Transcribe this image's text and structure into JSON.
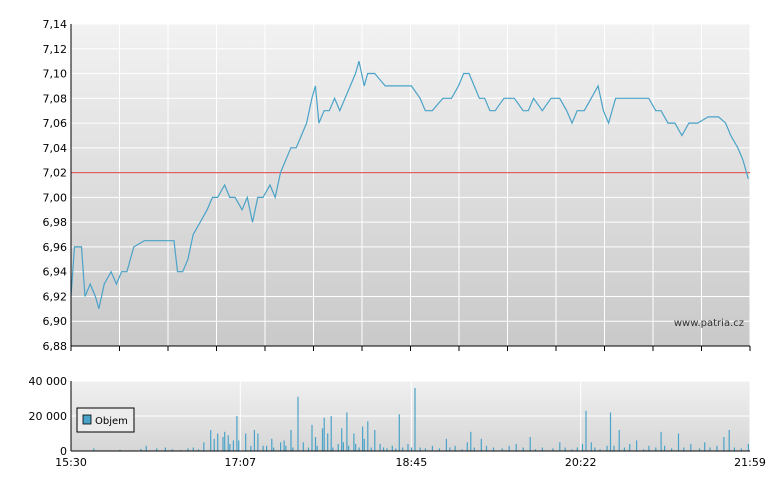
{
  "chart_data": [
    {
      "type": "line",
      "y_axis_ticks": [
        "7,14",
        "7,12",
        "7,10",
        "7,08",
        "7,06",
        "7,04",
        "7,02",
        "7,00",
        "6,98",
        "6,96",
        "6,94",
        "6,92",
        "6,90",
        "6,88"
      ],
      "y_tick_values": [
        7.14,
        7.12,
        7.1,
        7.08,
        7.06,
        7.04,
        7.02,
        7.0,
        6.98,
        6.96,
        6.94,
        6.92,
        6.9,
        6.88
      ],
      "ylim": [
        6.88,
        7.14
      ],
      "x_range_minutes": [
        930,
        1319
      ],
      "reference_line": {
        "value": 7.02,
        "color": "#e06060"
      },
      "line_color": "#4aa3c8",
      "watermark": "www.patria.cz",
      "grid": true,
      "series": [
        {
          "points": [
            [
              930,
              6.92
            ],
            [
              932,
              6.96
            ],
            [
              936,
              6.96
            ],
            [
              938,
              6.92
            ],
            [
              941,
              6.93
            ],
            [
              944,
              6.92
            ],
            [
              946,
              6.91
            ],
            [
              949,
              6.93
            ],
            [
              953,
              6.94
            ],
            [
              956,
              6.93
            ],
            [
              959,
              6.94
            ],
            [
              962,
              6.94
            ],
            [
              966,
              6.96
            ],
            [
              972,
              6.965
            ],
            [
              978,
              6.965
            ],
            [
              984,
              6.965
            ],
            [
              989,
              6.965
            ],
            [
              991,
              6.94
            ],
            [
              994,
              6.94
            ],
            [
              997,
              6.95
            ],
            [
              1000,
              6.97
            ],
            [
              1004,
              6.98
            ],
            [
              1008,
              6.99
            ],
            [
              1011,
              7.0
            ],
            [
              1014,
              7.0
            ],
            [
              1018,
              7.01
            ],
            [
              1021,
              7.0
            ],
            [
              1024,
              7.0
            ],
            [
              1028,
              6.99
            ],
            [
              1031,
              7.0
            ],
            [
              1034,
              6.98
            ],
            [
              1037,
              7.0
            ],
            [
              1040,
              7.0
            ],
            [
              1044,
              7.01
            ],
            [
              1047,
              7.0
            ],
            [
              1050,
              7.02
            ],
            [
              1053,
              7.03
            ],
            [
              1056,
              7.04
            ],
            [
              1059,
              7.04
            ],
            [
              1062,
              7.05
            ],
            [
              1065,
              7.06
            ],
            [
              1068,
              7.08
            ],
            [
              1070,
              7.09
            ],
            [
              1072,
              7.06
            ],
            [
              1075,
              7.07
            ],
            [
              1078,
              7.07
            ],
            [
              1081,
              7.08
            ],
            [
              1084,
              7.07
            ],
            [
              1087,
              7.08
            ],
            [
              1090,
              7.09
            ],
            [
              1093,
              7.1
            ],
            [
              1095,
              7.11
            ],
            [
              1098,
              7.09
            ],
            [
              1100,
              7.1
            ],
            [
              1104,
              7.1
            ],
            [
              1110,
              7.09
            ],
            [
              1115,
              7.09
            ],
            [
              1120,
              7.09
            ],
            [
              1125,
              7.09
            ],
            [
              1130,
              7.08
            ],
            [
              1133,
              7.07
            ],
            [
              1137,
              7.07
            ],
            [
              1143,
              7.08
            ],
            [
              1148,
              7.08
            ],
            [
              1152,
              7.09
            ],
            [
              1155,
              7.1
            ],
            [
              1158,
              7.1
            ],
            [
              1161,
              7.09
            ],
            [
              1164,
              7.08
            ],
            [
              1167,
              7.08
            ],
            [
              1170,
              7.07
            ],
            [
              1173,
              7.07
            ],
            [
              1178,
              7.08
            ],
            [
              1184,
              7.08
            ],
            [
              1189,
              7.07
            ],
            [
              1192,
              7.07
            ],
            [
              1195,
              7.08
            ],
            [
              1200,
              7.07
            ],
            [
              1205,
              7.08
            ],
            [
              1210,
              7.08
            ],
            [
              1214,
              7.07
            ],
            [
              1217,
              7.06
            ],
            [
              1220,
              7.07
            ],
            [
              1224,
              7.07
            ],
            [
              1228,
              7.08
            ],
            [
              1232,
              7.09
            ],
            [
              1235,
              7.07
            ],
            [
              1238,
              7.06
            ],
            [
              1242,
              7.08
            ],
            [
              1248,
              7.08
            ],
            [
              1255,
              7.08
            ],
            [
              1261,
              7.08
            ],
            [
              1265,
              7.07
            ],
            [
              1268,
              7.07
            ],
            [
              1272,
              7.06
            ],
            [
              1276,
              7.06
            ],
            [
              1280,
              7.05
            ],
            [
              1284,
              7.06
            ],
            [
              1289,
              7.06
            ],
            [
              1295,
              7.065
            ],
            [
              1301,
              7.065
            ],
            [
              1305,
              7.06
            ],
            [
              1308,
              7.05
            ],
            [
              1312,
              7.04
            ],
            [
              1315,
              7.03
            ],
            [
              1318,
              7.015
            ]
          ]
        }
      ]
    },
    {
      "type": "bar",
      "y_axis_ticks": [
        "40 000",
        "20 000",
        "0"
      ],
      "y_tick_values": [
        40000,
        20000,
        0
      ],
      "ylim": [
        0,
        40000
      ],
      "x_range_minutes": [
        930,
        1319
      ],
      "x_axis_ticks": [
        "15:30",
        "17:07",
        "18:45",
        "20:22",
        "21:59"
      ],
      "x_tick_minutes": [
        930,
        1027,
        1125,
        1222,
        1319
      ],
      "bar_color": "#4aa3c8",
      "grid": true,
      "legend_label": "Objem",
      "series": [
        {
          "name": "Objem",
          "points": [
            [
              943,
              1500
            ],
            [
              958,
              800
            ],
            [
              970,
              1200
            ],
            [
              973,
              3000
            ],
            [
              979,
              1500
            ],
            [
              984,
              2000
            ],
            [
              988,
              1000
            ],
            [
              993,
              500
            ],
            [
              997,
              1500
            ],
            [
              1000,
              2000
            ],
            [
              1003,
              1000
            ],
            [
              1006,
              5000
            ],
            [
              1010,
              12000
            ],
            [
              1012,
              7000
            ],
            [
              1014,
              10000
            ],
            [
              1017,
              8000
            ],
            [
              1018,
              11000
            ],
            [
              1020,
              9000
            ],
            [
              1021,
              4000
            ],
            [
              1023,
              6000
            ],
            [
              1025,
              20000
            ],
            [
              1026,
              6000
            ],
            [
              1030,
              10000
            ],
            [
              1033,
              3000
            ],
            [
              1035,
              12000
            ],
            [
              1037,
              10000
            ],
            [
              1040,
              3000
            ],
            [
              1042,
              3000
            ],
            [
              1045,
              7000
            ],
            [
              1046,
              2000
            ],
            [
              1050,
              5000
            ],
            [
              1052,
              6000
            ],
            [
              1053,
              3000
            ],
            [
              1056,
              12000
            ],
            [
              1057,
              2000
            ],
            [
              1060,
              31000
            ],
            [
              1063,
              5000
            ],
            [
              1066,
              2000
            ],
            [
              1068,
              15000
            ],
            [
              1070,
              8000
            ],
            [
              1071,
              3000
            ],
            [
              1074,
              13000
            ],
            [
              1075,
              19000
            ],
            [
              1077,
              10000
            ],
            [
              1079,
              20000
            ],
            [
              1080,
              2000
            ],
            [
              1083,
              4000
            ],
            [
              1085,
              13000
            ],
            [
              1086,
              5000
            ],
            [
              1088,
              22000
            ],
            [
              1089,
              3000
            ],
            [
              1092,
              10000
            ],
            [
              1093,
              4000
            ],
            [
              1095,
              2000
            ],
            [
              1097,
              14000
            ],
            [
              1098,
              7000
            ],
            [
              1100,
              17000
            ],
            [
              1102,
              2000
            ],
            [
              1104,
              12000
            ],
            [
              1107,
              4000
            ],
            [
              1109,
              2000
            ],
            [
              1111,
              1500
            ],
            [
              1114,
              3000
            ],
            [
              1116,
              1500
            ],
            [
              1118,
              21000
            ],
            [
              1120,
              2000
            ],
            [
              1123,
              4000
            ],
            [
              1125,
              2000
            ],
            [
              1127,
              36000
            ],
            [
              1130,
              2000
            ],
            [
              1133,
              1500
            ],
            [
              1137,
              3000
            ],
            [
              1141,
              1500
            ],
            [
              1145,
              7000
            ],
            [
              1147,
              2000
            ],
            [
              1150,
              3000
            ],
            [
              1154,
              1000
            ],
            [
              1157,
              5000
            ],
            [
              1159,
              11000
            ],
            [
              1161,
              2000
            ],
            [
              1165,
              7000
            ],
            [
              1168,
              3000
            ],
            [
              1172,
              2000
            ],
            [
              1177,
              1500
            ],
            [
              1181,
              3000
            ],
            [
              1185,
              4000
            ],
            [
              1189,
              2000
            ],
            [
              1193,
              8000
            ],
            [
              1196,
              1000
            ],
            [
              1200,
              2000
            ],
            [
              1206,
              1500
            ],
            [
              1210,
              5000
            ],
            [
              1213,
              2000
            ],
            [
              1217,
              1000
            ],
            [
              1220,
              2000
            ],
            [
              1223,
              4000
            ],
            [
              1225,
              23000
            ],
            [
              1228,
              5000
            ],
            [
              1230,
              2000
            ],
            [
              1233,
              1000
            ],
            [
              1237,
              3000
            ],
            [
              1239,
              22000
            ],
            [
              1241,
              3000
            ],
            [
              1244,
              12000
            ],
            [
              1247,
              2000
            ],
            [
              1250,
              4000
            ],
            [
              1254,
              6000
            ],
            [
              1258,
              1000
            ],
            [
              1261,
              3000
            ],
            [
              1265,
              2000
            ],
            [
              1268,
              11000
            ],
            [
              1270,
              3000
            ],
            [
              1274,
              1500
            ],
            [
              1278,
              10000
            ],
            [
              1281,
              2000
            ],
            [
              1285,
              4000
            ],
            [
              1290,
              1500
            ],
            [
              1293,
              5000
            ],
            [
              1296,
              2000
            ],
            [
              1300,
              3000
            ],
            [
              1304,
              8000
            ],
            [
              1307,
              12000
            ],
            [
              1310,
              2000
            ],
            [
              1314,
              1500
            ],
            [
              1318,
              4000
            ]
          ]
        }
      ]
    }
  ]
}
